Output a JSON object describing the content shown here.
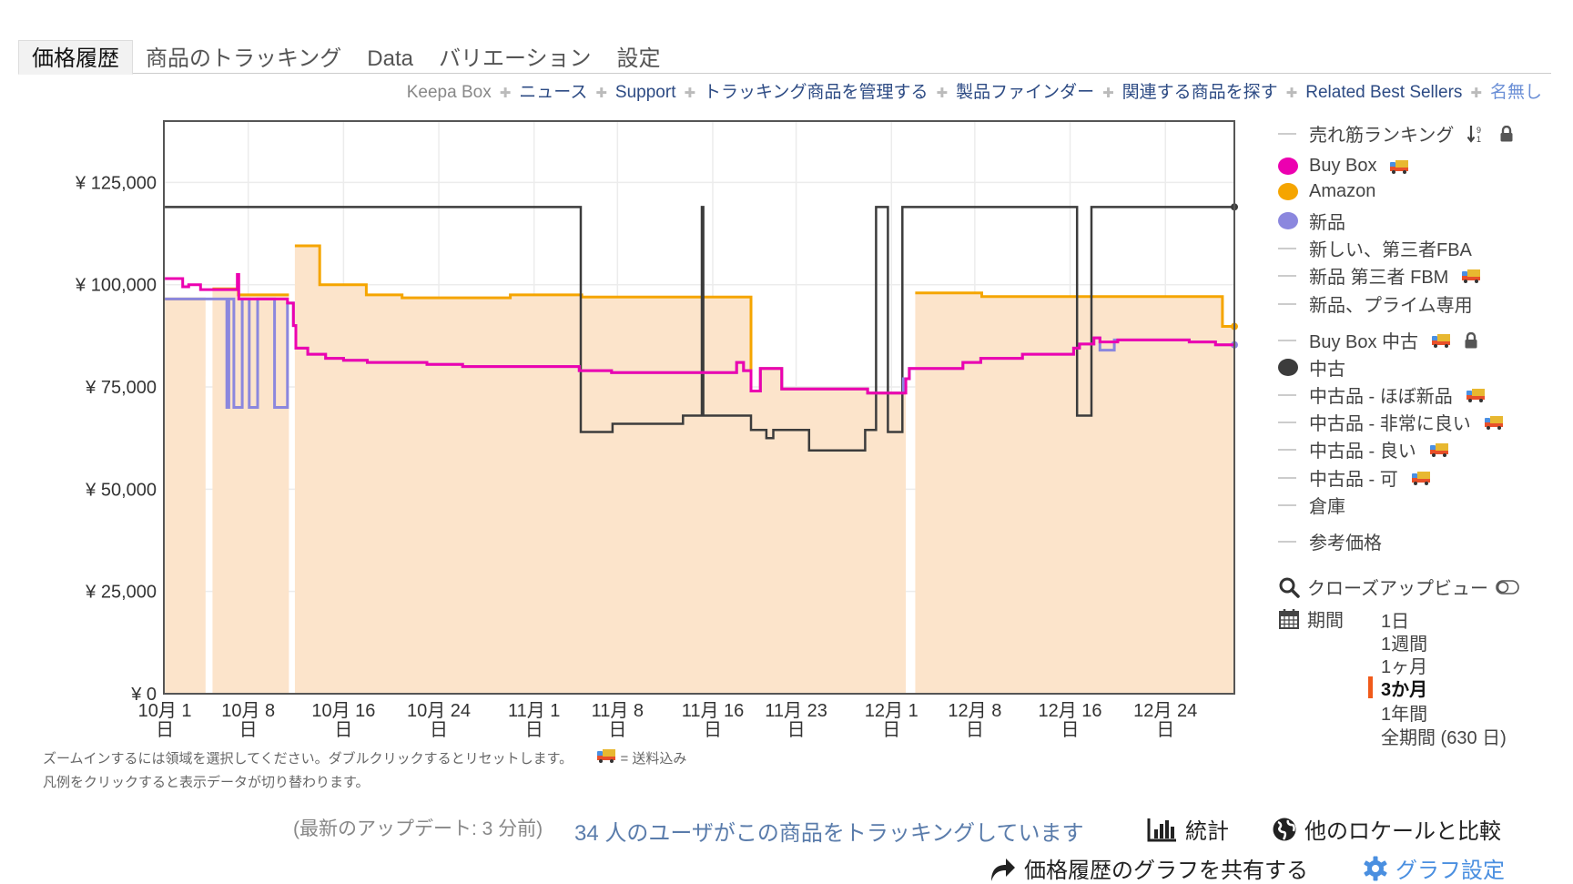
{
  "tabs": [
    {
      "label": "価格履歴",
      "active": true
    },
    {
      "label": "商品のトラッキング"
    },
    {
      "label": "Data"
    },
    {
      "label": "バリエーション"
    },
    {
      "label": "設定"
    }
  ],
  "links": [
    "Keepa Box",
    "ニュース",
    "Support",
    "トラッキング商品を管理する",
    "製品ファインダー",
    "関連する商品を探す",
    "Related Best Sellers",
    "名無し"
  ],
  "legend": [
    {
      "label": "売れ筋ランキング",
      "marker": "line",
      "icons": [
        "sort-icon",
        "lock-icon"
      ]
    },
    {
      "label": "Buy Box",
      "marker": "dot",
      "color": "#ec00b0",
      "icons": [
        "truck-icon"
      ]
    },
    {
      "label": "Amazon",
      "marker": "dot",
      "color": "#f5a500",
      "icons": []
    },
    {
      "label": "新品",
      "marker": "dot",
      "color": "#8b87de",
      "icons": []
    },
    {
      "label": "新しい、第三者FBA",
      "marker": "line",
      "icons": []
    },
    {
      "label": "新品 第三者 FBM",
      "marker": "line",
      "icons": [
        "truck-icon"
      ]
    },
    {
      "label": "新品、プライム専用",
      "marker": "line",
      "icons": []
    },
    {
      "label": "Buy Box 中古",
      "marker": "line",
      "icons": [
        "truck-icon",
        "lock-icon"
      ]
    },
    {
      "label": "中古",
      "marker": "dot",
      "color": "#3c3c3c",
      "icons": []
    },
    {
      "label": "中古品 - ほぼ新品",
      "marker": "line",
      "icons": [
        "truck-icon"
      ]
    },
    {
      "label": "中古品 - 非常に良い",
      "marker": "line",
      "icons": [
        "truck-icon"
      ]
    },
    {
      "label": "中古品 - 良い",
      "marker": "line",
      "icons": [
        "truck-icon"
      ]
    },
    {
      "label": "中古品 - 可",
      "marker": "line",
      "icons": [
        "truck-icon"
      ]
    },
    {
      "label": "倉庫",
      "marker": "line",
      "icons": []
    },
    {
      "label": "参考価格",
      "marker": "line",
      "icons": []
    }
  ],
  "closeup": {
    "label": "クローズアップビュー",
    "toggle_on": false
  },
  "period": {
    "label": "期間",
    "options": [
      "1日",
      "1週間",
      "1ヶ月",
      "3か月",
      "1年間",
      "全期間 (630 日)"
    ],
    "selected": "3か月",
    "accent": "#f05a1a"
  },
  "hints": {
    "line1": "ズームインするには領域を選択してください。ダブルクリックするとリセットします。",
    "shipping_note": "= 送料込み",
    "line2": "凡例をクリックすると表示データが切り替わります。"
  },
  "footer": {
    "last_update": "(最新のアップデート: 3 分前)",
    "tracking_users": "34 人のユーザがこの商品をトラッキングしています",
    "stats": "統計",
    "compare_locales": "他のロケールと比較",
    "share": "価格履歴のグラフを共有する",
    "graph_settings": "グラフ設定"
  },
  "chart_data": {
    "type": "line",
    "step": true,
    "xlim": [
      "09-30T22",
      "12-29T19"
    ],
    "ylim": [
      0,
      140000
    ],
    "grid": true,
    "yticks": [
      0,
      25000,
      50000,
      75000,
      100000,
      125000
    ],
    "ytick_labels": [
      "¥ 0",
      "¥ 25,000",
      "¥ 50,000",
      "¥ 75,000",
      "¥ 100,000",
      "¥ 125,000"
    ],
    "xticks": [
      "10-01",
      "10-08",
      "10-16",
      "10-24",
      "11-01",
      "11-08",
      "11-16",
      "11-23",
      "12-01",
      "12-08",
      "12-16",
      "12-24"
    ],
    "xtick_labels": [
      [
        "10月 1",
        "日"
      ],
      [
        "10月 8",
        "日"
      ],
      [
        "10月 16",
        "日"
      ],
      [
        "10月 24",
        "日"
      ],
      [
        "11月 1",
        "日"
      ],
      [
        "11月 8",
        "日"
      ],
      [
        "11月 16",
        "日"
      ],
      [
        "11月 23",
        "日"
      ],
      [
        "12月 1",
        "日"
      ],
      [
        "12月 8",
        "日"
      ],
      [
        "12月 16",
        "日"
      ],
      [
        "12月 24",
        "日"
      ]
    ],
    "series": [
      {
        "name": "Amazon",
        "color": "#f5a500",
        "fill": "#fce4cb",
        "points": [
          [
            "10-01",
            96500
          ],
          [
            "10-04T10",
            null
          ],
          [
            "10-05",
            99000
          ],
          [
            "10-07T04",
            97500
          ],
          [
            "10-11T10",
            null
          ],
          [
            "10-11T22",
            109500
          ],
          [
            "10-14",
            100000
          ],
          [
            "10-17T22",
            97500
          ],
          [
            "10-20T22",
            96800
          ],
          [
            "10-30",
            97500
          ],
          [
            "11-05",
            97000
          ],
          [
            "11-19T05",
            74000
          ],
          [
            "11-20",
            79500
          ],
          [
            "11-21T19",
            74500
          ],
          [
            "11-29",
            73500
          ],
          [
            "12-02T05",
            null
          ],
          [
            "12-03",
            98000
          ],
          [
            "12-08T14",
            97100
          ],
          [
            "12-28T19",
            89800
          ],
          [
            "12-29T19",
            89800
          ]
        ]
      },
      {
        "name": "中古",
        "color": "#3c3c3c",
        "points": [
          [
            "10-01",
            119000
          ],
          [
            "11-04T22",
            64000
          ],
          [
            "11-07T14",
            66000
          ],
          [
            "11-13T12",
            68000
          ],
          [
            "11-15T02",
            119000
          ],
          [
            "11-15T05",
            68000
          ],
          [
            "11-19T05",
            64500
          ],
          [
            "11-20T12",
            62500
          ],
          [
            "11-21T02",
            64500
          ],
          [
            "11-24T02",
            59500
          ],
          [
            "11-28T19",
            64500
          ],
          [
            "11-29T17",
            119000
          ],
          [
            "11-30T17",
            64000
          ],
          [
            "12-01T22",
            119000
          ],
          [
            "12-16T14",
            68000
          ],
          [
            "12-17T19",
            119000
          ],
          [
            "12-29T19",
            119000
          ]
        ]
      },
      {
        "name": "新品",
        "color": "#8b87de",
        "points": [
          [
            "10-01",
            96500
          ],
          [
            "10-06T05",
            70000
          ],
          [
            "10-06T09",
            96500
          ],
          [
            "10-06T19",
            70000
          ],
          [
            "10-07T12",
            96500
          ],
          [
            "10-08T02",
            70000
          ],
          [
            "10-08T19",
            96500
          ],
          [
            "10-10T05",
            70000
          ],
          [
            "10-11T07",
            95500
          ],
          [
            "10-11T19",
            90000
          ],
          [
            "10-12",
            84500
          ],
          [
            "10-13",
            83000
          ],
          [
            "10-14T12",
            82000
          ],
          [
            "10-16",
            81500
          ],
          [
            "10-18",
            81000
          ],
          [
            "10-23",
            80500
          ],
          [
            "10-26",
            80000
          ],
          [
            "11-04T19",
            79000
          ],
          [
            "11-07T12",
            78500
          ],
          [
            "11-18",
            81000
          ],
          [
            "11-18T14",
            79000
          ],
          [
            "11-19T05",
            74000
          ],
          [
            "11-20",
            79500
          ],
          [
            "11-21T19",
            74500
          ],
          [
            "11-29",
            73500
          ],
          [
            "12-02",
            77000
          ],
          [
            "12-02T12",
            79500
          ],
          [
            "12-07",
            81000
          ],
          [
            "12-08T12",
            82000
          ],
          [
            "12-12",
            83000
          ],
          [
            "12-16T07",
            84500
          ],
          [
            "12-16T19",
            85500
          ],
          [
            "12-18",
            87000
          ],
          [
            "12-18T12",
            84000
          ],
          [
            "12-19T17",
            86500
          ],
          [
            "12-26",
            86000
          ],
          [
            "12-28T05",
            85300
          ],
          [
            "12-29T19",
            85300
          ]
        ]
      },
      {
        "name": "Buy Box",
        "color": "#ec00b0",
        "points": [
          [
            "10-01",
            101500
          ],
          [
            "10-02T12",
            99500
          ],
          [
            "10-03",
            100000
          ],
          [
            "10-04",
            98800
          ],
          [
            "10-07T02",
            102500
          ],
          [
            "10-07T05",
            96500
          ],
          [
            "10-11T07",
            95500
          ],
          [
            "10-11T19",
            90000
          ],
          [
            "10-12",
            84500
          ],
          [
            "10-13",
            83000
          ],
          [
            "10-14T12",
            82000
          ],
          [
            "10-16",
            81500
          ],
          [
            "10-18",
            81000
          ],
          [
            "10-23",
            80500
          ],
          [
            "10-26",
            80000
          ],
          [
            "11-04T19",
            79000
          ],
          [
            "11-07T12",
            78500
          ],
          [
            "11-18",
            81000
          ],
          [
            "11-18T14",
            79000
          ],
          [
            "11-19T05",
            74000
          ],
          [
            "11-20",
            79500
          ],
          [
            "11-21T19",
            74500
          ],
          [
            "11-29",
            73500
          ],
          [
            "12-02T05",
            77000
          ],
          [
            "12-02T12",
            79500
          ],
          [
            "12-07",
            81000
          ],
          [
            "12-08T12",
            82000
          ],
          [
            "12-12",
            83000
          ],
          [
            "12-16T07",
            84500
          ],
          [
            "12-16T19",
            85500
          ],
          [
            "12-18",
            87000
          ],
          [
            "12-18T12",
            86000
          ],
          [
            "12-20",
            86500
          ],
          [
            "12-26",
            86000
          ],
          [
            "12-28T05",
            85300
          ],
          [
            "12-29T19",
            85300
          ]
        ]
      }
    ]
  }
}
